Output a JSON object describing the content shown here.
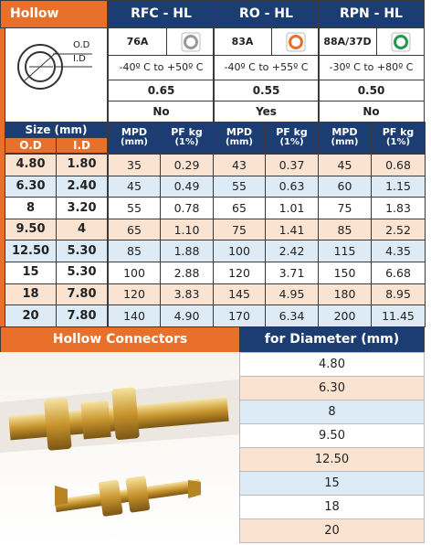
{
  "header": {
    "title": "Hollow",
    "products": [
      {
        "name": "RFC - HL",
        "hardness": "76A",
        "temperature": "-40º C to +50º C",
        "value": "0.65",
        "option": "No"
      },
      {
        "name": "RO - HL",
        "hardness": "83A",
        "temperature": "-40º C to +55º C",
        "value": "0.55",
        "option": "Yes"
      },
      {
        "name": "RPN - HL",
        "hardness": "88A/37D",
        "temperature": "-30º C to +80º C",
        "value": "0.50",
        "option": "No"
      }
    ]
  },
  "diagram": {
    "od": "O.D",
    "id": "I.D"
  },
  "size_header": {
    "title": "Size (mm)",
    "od": "O.D",
    "id": "I.D",
    "columns": [
      [
        "MPD",
        "(mm)"
      ],
      [
        "PF kg",
        "(1%)"
      ],
      [
        "MPD",
        "(mm)"
      ],
      [
        "PF kg",
        "(1%)"
      ],
      [
        "MPD",
        "(mm)"
      ],
      [
        "PF kg",
        "(1%)"
      ]
    ]
  },
  "table": {
    "rows": [
      [
        "4.80",
        "1.80",
        "35",
        "0.29",
        "43",
        "0.37",
        "45",
        "0.68"
      ],
      [
        "6.30",
        "2.40",
        "45",
        "0.49",
        "55",
        "0.63",
        "60",
        "1.15"
      ],
      [
        "8",
        "3.20",
        "55",
        "0.78",
        "65",
        "1.01",
        "75",
        "1.83"
      ],
      [
        "9.50",
        "4",
        "65",
        "1.10",
        "75",
        "1.41",
        "85",
        "2.52"
      ],
      [
        "12.50",
        "5.30",
        "85",
        "1.88",
        "100",
        "2.42",
        "115",
        "4.35"
      ],
      [
        "15",
        "5.30",
        "100",
        "2.88",
        "120",
        "3.71",
        "150",
        "6.68"
      ],
      [
        "18",
        "7.80",
        "120",
        "3.83",
        "145",
        "4.95",
        "180",
        "8.95"
      ],
      [
        "20",
        "7.80",
        "140",
        "4.90",
        "170",
        "6.34",
        "200",
        "11.45"
      ]
    ]
  },
  "connectors": {
    "title": "Hollow Connectors",
    "diameter_title": "for Diameter (mm)",
    "diameters": [
      "4.80",
      "6.30",
      "8",
      "9.50",
      "12.50",
      "15",
      "18",
      "20"
    ]
  }
}
